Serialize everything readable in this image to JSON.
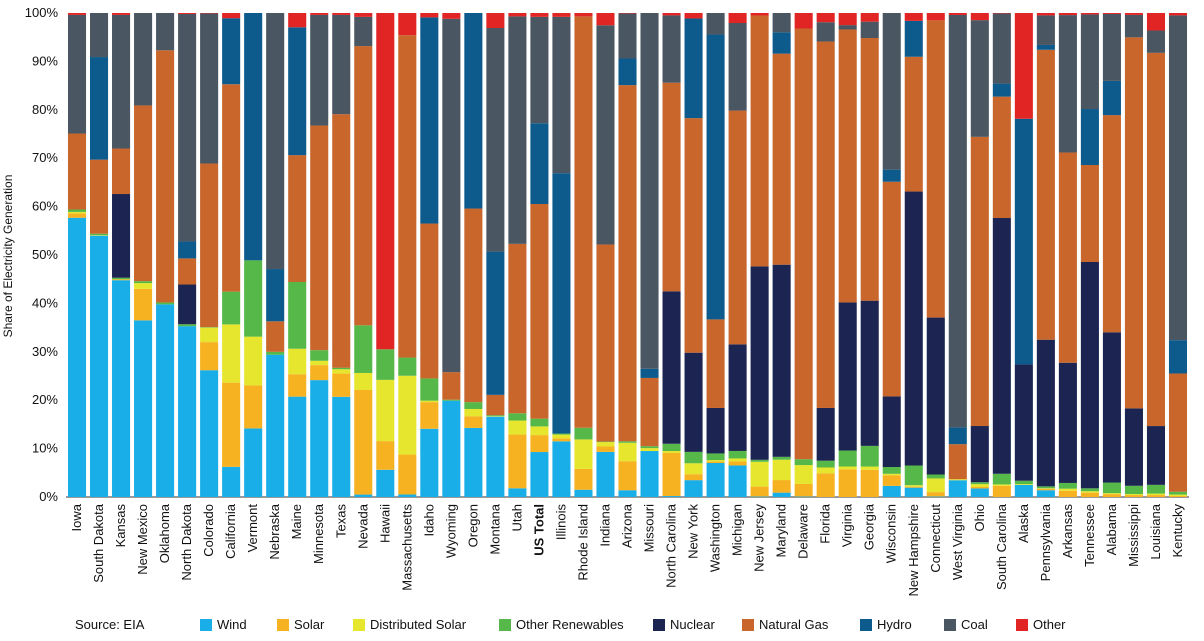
{
  "source_note": "Source: EIA",
  "chart_data": {
    "type": "bar",
    "stacked": true,
    "ylabel": "Share of Electricity Generation",
    "xlabel": "",
    "ylim": [
      0,
      100
    ],
    "y_ticks": [
      "0%",
      "10%",
      "20%",
      "30%",
      "40%",
      "50%",
      "60%",
      "70%",
      "80%",
      "90%",
      "100%"
    ],
    "y_tick_values": [
      0,
      10,
      20,
      30,
      40,
      50,
      60,
      70,
      80,
      90,
      100
    ],
    "grid": false,
    "legend_position": "bottom",
    "highlight_category": "US Total",
    "categories": [
      "Iowa",
      "South Dakota",
      "Kansas",
      "New Mexico",
      "Oklahoma",
      "North Dakota",
      "Colorado",
      "California",
      "Vermont",
      "Nebraska",
      "Maine",
      "Minnesota",
      "Texas",
      "Nevada",
      "Hawaii",
      "Massachusetts",
      "Idaho",
      "Wyoming",
      "Oregon",
      "Montana",
      "Utah",
      "US Total",
      "Illinois",
      "Rhode Island",
      "Indiana",
      "Arizona",
      "Missouri",
      "North Carolina",
      "New York",
      "Washington",
      "Michigan",
      "New Jersey",
      "Maryland",
      "Delaware",
      "Florida",
      "Virginia",
      "Georgia",
      "Wisconsin",
      "New Hampshire",
      "Connecticut",
      "West Virginia",
      "Ohio",
      "South Carolina",
      "Alaska",
      "Pennsylvania",
      "Arkansas",
      "Tennessee",
      "Alabama",
      "Mississippi",
      "Louisiana",
      "Kentucky"
    ],
    "series": [
      {
        "name": "Wind",
        "color": "#1aaee8",
        "values": [
          57.7,
          54.0,
          44.8,
          36.5,
          39.8,
          35.3,
          26.2,
          5.8,
          14.2,
          29.4,
          19.7,
          24.2,
          20.7,
          0.5,
          5.6,
          0.5,
          14.1,
          19.9,
          14.2,
          16.6,
          1.8,
          9.3,
          11.5,
          1.5,
          9.2,
          1.4,
          9.5,
          0.2,
          3.4,
          7.1,
          6.3,
          0.1,
          0.9,
          0.1,
          0.0,
          0.0,
          0.0,
          2.3,
          1.9,
          0.1,
          3.4,
          1.8,
          0.0,
          1.5,
          1.4,
          0.0,
          0.0,
          0.0,
          0.0,
          0.0,
          0.0
        ]
      },
      {
        "name": "Solar",
        "color": "#f6b221",
        "values": [
          0.9,
          0.0,
          0.2,
          6.5,
          0.0,
          0.0,
          5.8,
          16.2,
          8.9,
          0.0,
          4.4,
          3.1,
          4.8,
          21.5,
          5.9,
          7.9,
          5.5,
          0.0,
          2.4,
          0.0,
          11.1,
          3.5,
          0.6,
          4.3,
          1.1,
          6.0,
          0.0,
          8.9,
          1.2,
          0.3,
          0.8,
          2.0,
          2.6,
          2.6,
          4.9,
          5.7,
          5.0,
          2.2,
          0.2,
          0.9,
          0.0,
          0.3,
          2.3,
          0.0,
          0.3,
          1.2,
          0.9,
          0.6,
          0.4,
          0.4,
          0.2
        ]
      },
      {
        "name": "Distributed Solar",
        "color": "#e6e62e",
        "values": [
          0.3,
          0.1,
          0.0,
          1.2,
          0.0,
          0.0,
          3.0,
          11.2,
          10.1,
          0.0,
          5.0,
          0.9,
          0.9,
          3.5,
          12.6,
          15.6,
          0.3,
          0.0,
          1.5,
          0.1,
          2.9,
          1.8,
          0.8,
          6.1,
          0.9,
          3.8,
          0.6,
          0.4,
          2.2,
          0.3,
          0.6,
          5.0,
          4.2,
          3.9,
          1.2,
          0.6,
          0.6,
          0.3,
          0.3,
          2.8,
          0.2,
          0.6,
          0.3,
          0.1,
          0.1,
          0.4,
          0.3,
          0.2,
          0.2,
          0.3,
          0.3
        ]
      },
      {
        "name": "Other Renewables",
        "color": "#55b848",
        "values": [
          0.5,
          0.3,
          0.3,
          0.4,
          0.4,
          0.4,
          0.1,
          6.3,
          15.8,
          0.6,
          13.1,
          2.2,
          0.3,
          9.8,
          6.3,
          3.6,
          4.6,
          0.2,
          1.4,
          0.2,
          1.5,
          1.6,
          0.2,
          2.4,
          0.1,
          0.3,
          0.4,
          1.5,
          2.3,
          1.4,
          1.5,
          0.4,
          0.6,
          1.2,
          1.4,
          3.3,
          3.8,
          1.4,
          4.0,
          0.8,
          0.0,
          0.4,
          2.2,
          0.4,
          0.4,
          1.1,
          0.6,
          2.2,
          1.7,
          1.8,
          0.6
        ]
      },
      {
        "name": "Nuclear",
        "color": "#1c2452",
        "values": [
          0.0,
          0.0,
          17.3,
          0.0,
          0.0,
          8.2,
          0.0,
          0.0,
          0.0,
          0.0,
          0.0,
          0.0,
          0.0,
          0.0,
          0.0,
          0.0,
          0.0,
          0.0,
          0.0,
          0.0,
          0.0,
          0.0,
          0.0,
          0.0,
          0.0,
          0.0,
          0.0,
          31.5,
          20.0,
          9.5,
          21.3,
          39.0,
          39.7,
          0.0,
          10.9,
          30.6,
          26.7,
          14.6,
          55.7,
          32.1,
          0.0,
          11.8,
          52.9,
          14.3,
          30.3,
          23.1,
          46.9,
          31.2,
          15.9,
          12.1,
          0.0
        ]
      },
      {
        "name": "Natural Gas",
        "color": "#c8662c",
        "values": [
          15.7,
          15.3,
          9.4,
          36.3,
          52.1,
          5.4,
          33.8,
          39.9,
          0.0,
          6.3,
          24.9,
          46.5,
          52.4,
          57.4,
          0.0,
          63.8,
          32.0,
          5.7,
          39.8,
          4.2,
          35.0,
          44.4,
          0.0,
          85.0,
          40.2,
          73.6,
          14.1,
          43.1,
          47.3,
          18.5,
          46.7,
          50.6,
          43.6,
          89.0,
          75.7,
          56.4,
          48.3,
          44.4,
          27.4,
          60.8,
          7.1,
          60.7,
          25.1,
          0.0,
          59.9,
          40.4,
          20.1,
          45.1,
          76.2,
          76.8,
          24.5
        ]
      },
      {
        "name": "Hydro",
        "color": "#0d5a8c",
        "values": [
          0.0,
          21.2,
          0.0,
          0.0,
          0.0,
          3.5,
          0.0,
          12.7,
          51.2,
          10.8,
          25.1,
          0.0,
          0.0,
          0.0,
          0.0,
          0.0,
          42.6,
          0.0,
          40.2,
          29.6,
          0.0,
          16.7,
          53.8,
          0.0,
          0.0,
          5.5,
          1.9,
          0.0,
          20.1,
          59.5,
          0.0,
          0.0,
          4.4,
          0.0,
          0.0,
          0.0,
          0.0,
          2.5,
          7.3,
          0.0,
          3.4,
          0.0,
          2.7,
          30.2,
          1.0,
          0.0,
          11.6,
          7.1,
          0.0,
          0.0,
          6.9
        ]
      },
      {
        "name": "Coal",
        "color": "#4a5661",
        "values": [
          24.5,
          9.1,
          27.6,
          19.1,
          7.7,
          47.0,
          31.0,
          0.0,
          0.0,
          52.9,
          0.0,
          22.9,
          20.5,
          6.0,
          0.0,
          0.0,
          0.0,
          73.0,
          0.0,
          46.2,
          47.0,
          22.0,
          32.3,
          0.0,
          44.7,
          9.3,
          73.5,
          13.9,
          0.0,
          4.5,
          17.5,
          0.0,
          4.0,
          0.0,
          4.0,
          0.9,
          3.0,
          32.4,
          0.0,
          0.0,
          83.5,
          24.5,
          14.5,
          0.0,
          6.1,
          26.4,
          19.6,
          13.9,
          4.6,
          4.6,
          67.3
        ]
      },
      {
        "name": "Other",
        "color": "#e12525",
        "values": [
          0.4,
          0.0,
          0.4,
          0.0,
          0.0,
          0.2,
          0.1,
          1.0,
          0.0,
          0.0,
          2.8,
          0.4,
          0.4,
          0.8,
          69.2,
          4.4,
          0.9,
          1.2,
          0.0,
          3.1,
          0.7,
          0.8,
          0.8,
          0.7,
          2.5,
          0.1,
          0.0,
          0.5,
          1.1,
          0.0,
          2.0,
          0.5,
          0.0,
          3.2,
          1.9,
          2.5,
          1.6,
          0.0,
          1.6,
          1.5,
          0.4,
          1.5,
          0.1,
          13.0,
          0.5,
          0.4,
          0.3,
          0.2,
          0.4,
          3.6,
          0.5
        ]
      }
    ]
  }
}
